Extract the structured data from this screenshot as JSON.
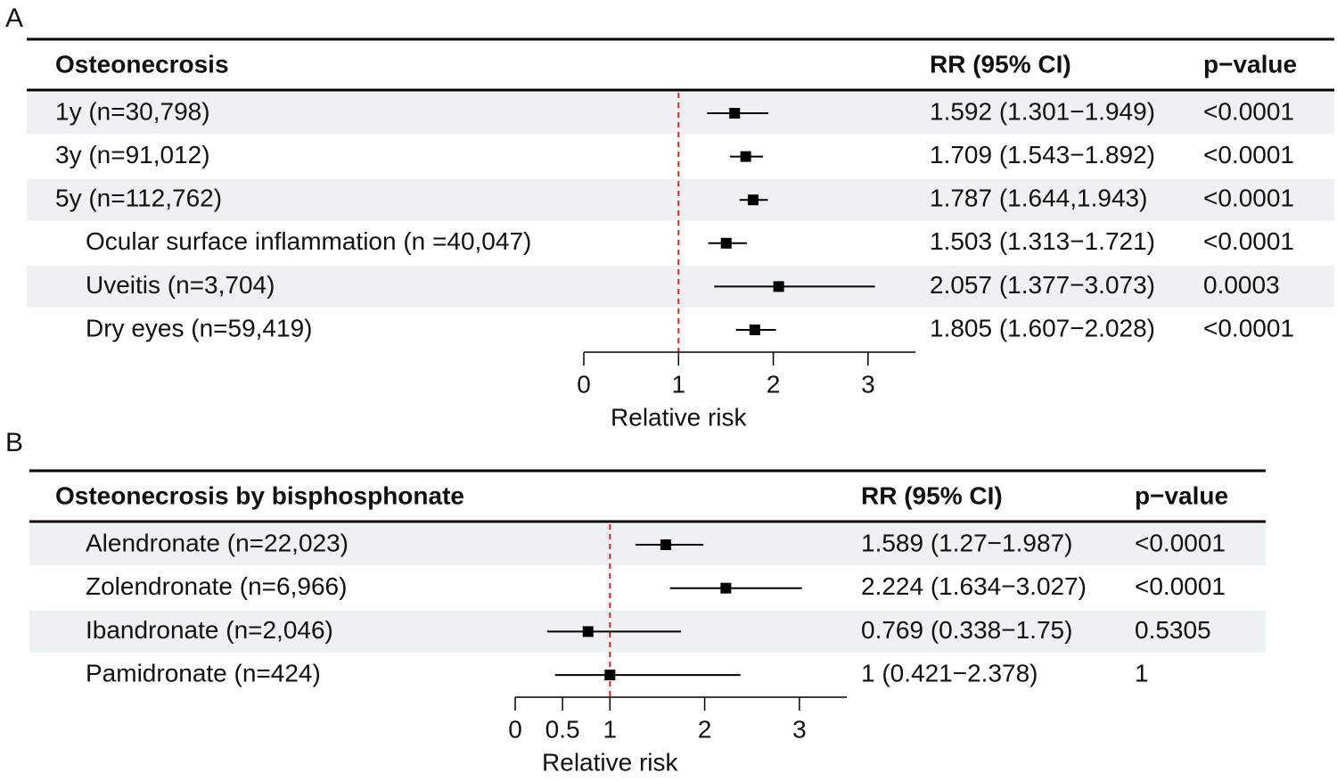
{
  "chart_data": [
    {
      "type": "forest",
      "panel": "A",
      "title": "Osteonecrosis",
      "ci_header": "RR (95% CI)",
      "p_header": "p−value",
      "categories": [
        "1y (n=30,798)",
        "3y (n=91,012)",
        "5y (n=112,762)",
        "Ocular surface inflammation (n =40,047)",
        "Uveitis (n=3,704)",
        "Dry eyes (n=59,419)"
      ],
      "indent": [
        false,
        false,
        false,
        true,
        true,
        true
      ],
      "values": [
        1.592,
        1.709,
        1.787,
        1.503,
        2.057,
        1.805
      ],
      "ci_low": [
        1.301,
        1.543,
        1.644,
        1.313,
        1.377,
        1.607
      ],
      "ci_high": [
        1.949,
        1.892,
        1.943,
        1.721,
        3.073,
        2.028
      ],
      "value_labels": [
        "1.592 (1.301−1.949)",
        "1.709 (1.543−1.892)",
        "1.787 (1.644,1.943)",
        "1.503 (1.313−1.721)",
        "2.057 (1.377−3.073)",
        "1.805 (1.607−2.028)"
      ],
      "p_values": [
        "<0.0001",
        "<0.0001",
        "<0.0001",
        "<0.0001",
        "0.0003",
        "<0.0001"
      ],
      "xlim": [
        0,
        3.5
      ],
      "xticks": [
        0,
        1,
        2,
        3
      ],
      "xlabel": "Relative risk",
      "reference": 1,
      "color": "#000000",
      "reference_color": "#d62728",
      "stripe_color": "#eef1f1"
    },
    {
      "type": "forest",
      "panel": "B",
      "title": "Osteonecrosis by bisphosphonate",
      "ci_header": "RR (95% CI)",
      "p_header": "p−value",
      "categories": [
        "Alendronate (n=22,023)",
        "Zolendronate (n=6,966)",
        "Ibandronate (n=2,046)",
        "Pamidronate (n=424)"
      ],
      "indent": [
        true,
        true,
        true,
        true
      ],
      "values": [
        1.589,
        2.224,
        0.769,
        1
      ],
      "ci_low": [
        1.27,
        1.634,
        0.338,
        0.421
      ],
      "ci_high": [
        1.987,
        3.027,
        1.75,
        2.378
      ],
      "value_labels": [
        "1.589 (1.27−1.987)",
        "2.224 (1.634−3.027)",
        "0.769 (0.338−1.75)",
        "1 (0.421−2.378)"
      ],
      "p_values": [
        "<0.0001",
        "<0.0001",
        "0.5305",
        "1"
      ],
      "xlim": [
        0,
        3.5
      ],
      "xticks": [
        0,
        0.5,
        1,
        2,
        3
      ],
      "xlabel": "Relative risk",
      "reference": 1,
      "color": "#000000",
      "reference_color": "#d62728",
      "stripe_color": "#eef1f1"
    }
  ]
}
